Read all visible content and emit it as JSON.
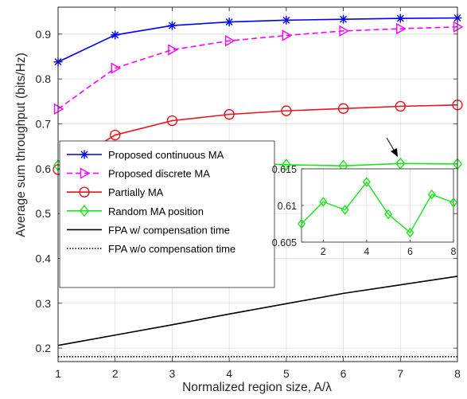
{
  "chart_data": {
    "type": "line",
    "xlabel": "Normalized region size, A/λ",
    "ylabel": "Average sum throughput (bits/Hz)",
    "x": [
      1,
      2,
      3,
      4,
      5,
      6,
      7,
      8
    ],
    "xlim": [
      1,
      8
    ],
    "ylim": [
      0.17,
      0.96
    ],
    "xticks": [
      "1",
      "2",
      "3",
      "4",
      "5",
      "6",
      "7",
      "8"
    ],
    "yticks": [
      "0.2",
      "0.3",
      "0.4",
      "0.5",
      "0.6",
      "0.7",
      "0.8",
      "0.9"
    ],
    "grid": true,
    "legend_position": "center-left",
    "series": [
      {
        "name": "Proposed continuous MA",
        "color": "#0000ff",
        "marker": "asterisk",
        "dash": "solid",
        "values": [
          0.838,
          0.898,
          0.919,
          0.927,
          0.931,
          0.933,
          0.935,
          0.936
        ]
      },
      {
        "name": "Proposed discrete MA",
        "color": "#ff00ff",
        "marker": "triangle-right",
        "dash": "dashed",
        "values": [
          0.733,
          0.824,
          0.865,
          0.885,
          0.897,
          0.907,
          0.912,
          0.916
        ]
      },
      {
        "name": "Partially MA",
        "color": "#e8141e",
        "marker": "circle",
        "dash": "solid",
        "values": [
          0.598,
          0.675,
          0.707,
          0.721,
          0.729,
          0.734,
          0.739,
          0.742
        ]
      },
      {
        "name": "Random MA position",
        "color": "#19e619",
        "marker": "diamond",
        "dash": "solid",
        "values": [
          0.6075,
          0.6105,
          0.6094,
          0.6132,
          0.6088,
          0.6063,
          0.6115,
          0.6104
        ]
      },
      {
        "name": "FPA w/ compensation time",
        "color": "#000000",
        "marker": "none",
        "dash": "solid",
        "values": [
          0.206,
          0.229,
          0.252,
          0.276,
          0.299,
          0.322,
          0.341,
          0.36
        ]
      },
      {
        "name": "FPA w/o compensation time",
        "color": "#000000",
        "marker": "none",
        "dash": "dotted",
        "values": [
          0.181,
          0.181,
          0.181,
          0.181,
          0.181,
          0.181,
          0.181,
          0.181
        ]
      }
    ],
    "inset": {
      "series": "Random MA position",
      "xlim": [
        1,
        8
      ],
      "ylim": [
        0.605,
        0.615
      ],
      "xticks": [
        "2",
        "4",
        "6",
        "8"
      ],
      "yticks": [
        "0.605",
        "0.61",
        "0.615"
      ],
      "grid": true
    }
  }
}
